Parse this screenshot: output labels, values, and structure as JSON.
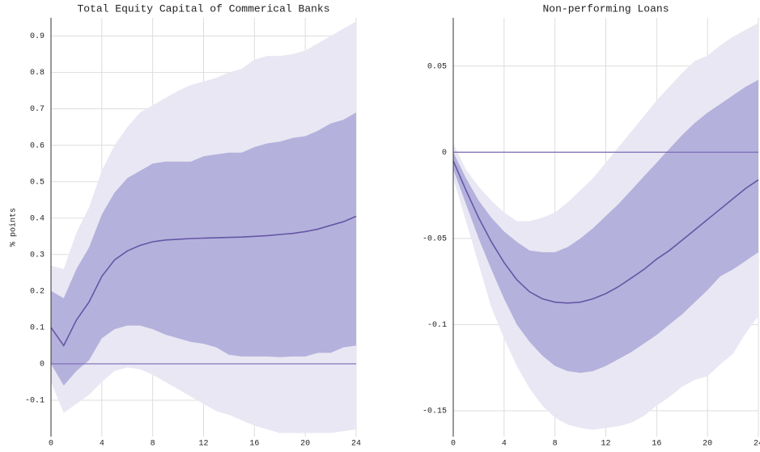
{
  "chart_data": [
    {
      "type": "line",
      "title": "Total Equity Capital of Commerical Banks",
      "y_label": "% points",
      "x": [
        0,
        1,
        2,
        3,
        4,
        5,
        6,
        7,
        8,
        9,
        10,
        11,
        12,
        13,
        14,
        15,
        16,
        17,
        18,
        19,
        20,
        21,
        22,
        23,
        24
      ],
      "xlim": [
        0,
        24
      ],
      "xticks": [
        0,
        4,
        8,
        12,
        16,
        20,
        24
      ],
      "ylim": [
        -0.2,
        0.95
      ],
      "yticks": [
        -0.1,
        0,
        0.1,
        0.2,
        0.3,
        0.4,
        0.5,
        0.6,
        0.7,
        0.8,
        0.9
      ],
      "grid": true,
      "bands": [
        {
          "color": "#e9e7f3",
          "lower": [
            -0.05,
            -0.135,
            -0.11,
            -0.085,
            -0.05,
            -0.02,
            -0.01,
            -0.015,
            -0.03,
            -0.05,
            -0.07,
            -0.09,
            -0.11,
            -0.13,
            -0.14,
            -0.155,
            -0.17,
            -0.18,
            -0.19,
            -0.19,
            -0.19,
            -0.19,
            -0.19,
            -0.185,
            -0.18
          ],
          "upper": [
            0.27,
            0.26,
            0.36,
            0.43,
            0.53,
            0.6,
            0.65,
            0.69,
            0.71,
            0.73,
            0.75,
            0.765,
            0.775,
            0.785,
            0.8,
            0.81,
            0.835,
            0.845,
            0.845,
            0.85,
            0.86,
            0.88,
            0.9,
            0.92,
            0.94
          ]
        },
        {
          "color": "#b4b2dc",
          "lower": [
            0.0,
            -0.06,
            -0.02,
            0.01,
            0.07,
            0.095,
            0.105,
            0.105,
            0.095,
            0.08,
            0.07,
            0.06,
            0.055,
            0.045,
            0.025,
            0.02,
            0.02,
            0.02,
            0.018,
            0.02,
            0.02,
            0.03,
            0.03,
            0.045,
            0.05
          ],
          "upper": [
            0.2,
            0.18,
            0.26,
            0.32,
            0.41,
            0.47,
            0.51,
            0.53,
            0.55,
            0.555,
            0.555,
            0.555,
            0.57,
            0.575,
            0.58,
            0.58,
            0.595,
            0.605,
            0.61,
            0.62,
            0.625,
            0.64,
            0.66,
            0.67,
            0.69
          ]
        }
      ],
      "series": [
        {
          "color": "#6656a6",
          "values": [
            0.1,
            0.05,
            0.12,
            0.17,
            0.24,
            0.285,
            0.31,
            0.325,
            0.335,
            0.34,
            0.342,
            0.344,
            0.345,
            0.346,
            0.347,
            0.348,
            0.35,
            0.352,
            0.355,
            0.358,
            0.363,
            0.37,
            0.38,
            0.39,
            0.405
          ]
        }
      ]
    },
    {
      "type": "line",
      "title": "Non-performing Loans",
      "x": [
        0,
        1,
        2,
        3,
        4,
        5,
        6,
        7,
        8,
        9,
        10,
        11,
        12,
        13,
        14,
        15,
        16,
        17,
        18,
        19,
        20,
        21,
        22,
        23,
        24
      ],
      "xlim": [
        0,
        24
      ],
      "xticks": [
        0,
        4,
        8,
        12,
        16,
        20,
        24
      ],
      "ylim": [
        -0.165,
        0.078
      ],
      "yticks": [
        -0.15,
        -0.1,
        -0.05,
        0,
        0.05
      ],
      "grid": true,
      "bands": [
        {
          "color": "#e9e7f3",
          "lower": [
            -0.015,
            -0.04,
            -0.065,
            -0.09,
            -0.108,
            -0.124,
            -0.137,
            -0.147,
            -0.154,
            -0.158,
            -0.16,
            -0.161,
            -0.16,
            -0.159,
            -0.157,
            -0.153,
            -0.147,
            -0.142,
            -0.136,
            -0.132,
            -0.13,
            -0.123,
            -0.117,
            -0.105,
            -0.095
          ],
          "upper": [
            0.005,
            -0.01,
            -0.02,
            -0.028,
            -0.035,
            -0.04,
            -0.04,
            -0.038,
            -0.035,
            -0.029,
            -0.022,
            -0.015,
            -0.006,
            0.003,
            0.012,
            0.021,
            0.03,
            0.038,
            0.046,
            0.053,
            0.056,
            0.062,
            0.067,
            0.071,
            0.075
          ]
        },
        {
          "color": "#b4b2dc",
          "lower": [
            -0.01,
            -0.03,
            -0.05,
            -0.068,
            -0.085,
            -0.1,
            -0.11,
            -0.118,
            -0.124,
            -0.127,
            -0.128,
            -0.127,
            -0.124,
            -0.12,
            -0.116,
            -0.111,
            -0.106,
            -0.1,
            -0.094,
            -0.087,
            -0.08,
            -0.072,
            -0.068,
            -0.063,
            -0.058
          ],
          "upper": [
            0.0,
            -0.015,
            -0.028,
            -0.038,
            -0.046,
            -0.052,
            -0.057,
            -0.058,
            -0.058,
            -0.055,
            -0.05,
            -0.044,
            -0.037,
            -0.03,
            -0.022,
            -0.014,
            -0.006,
            0.002,
            0.01,
            0.017,
            0.023,
            0.028,
            0.033,
            0.038,
            0.042
          ]
        }
      ],
      "series": [
        {
          "color": "#6656a6",
          "values": [
            -0.005,
            -0.022,
            -0.038,
            -0.052,
            -0.064,
            -0.074,
            -0.081,
            -0.085,
            -0.087,
            -0.0875,
            -0.087,
            -0.085,
            -0.082,
            -0.078,
            -0.073,
            -0.068,
            -0.062,
            -0.057,
            -0.051,
            -0.045,
            -0.039,
            -0.033,
            -0.027,
            -0.021,
            -0.016
          ]
        }
      ]
    }
  ]
}
